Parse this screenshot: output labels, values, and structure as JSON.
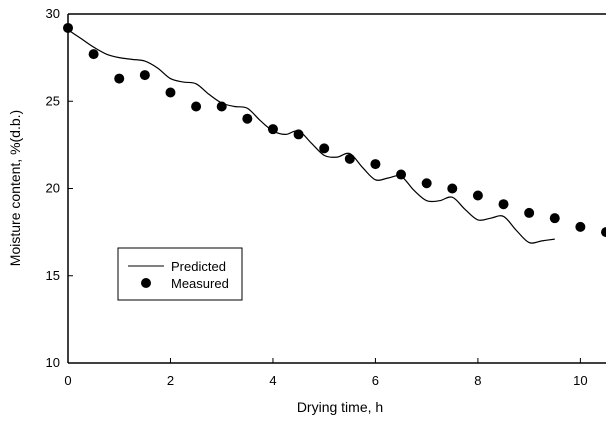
{
  "chart_data": {
    "type": "line",
    "xlabel": "Drying time, h",
    "ylabel": "Moisture content, %(d.b.)",
    "xlim": [
      0,
      10.5
    ],
    "ylim": [
      10,
      30
    ],
    "x_ticks": [
      0,
      2,
      4,
      6,
      8,
      10
    ],
    "y_ticks": [
      10,
      15,
      20,
      25,
      30
    ],
    "grid": false,
    "legend_placement": "center-left",
    "series": [
      {
        "name": "Predicted",
        "style": "line",
        "color": "#000000",
        "x": [
          0,
          0.25,
          0.5,
          0.75,
          1.0,
          1.25,
          1.5,
          1.75,
          2.0,
          2.25,
          2.5,
          2.75,
          3.0,
          3.25,
          3.5,
          3.75,
          4.0,
          4.25,
          4.5,
          4.75,
          5.0,
          5.25,
          5.5,
          5.75,
          6.0,
          6.25,
          6.5,
          6.75,
          7.0,
          7.25,
          7.5,
          7.75,
          8.0,
          8.25,
          8.5,
          8.75,
          9.0,
          9.25,
          9.5
        ],
        "y": [
          29.1,
          28.6,
          28.1,
          27.7,
          27.5,
          27.4,
          27.3,
          26.9,
          26.3,
          26.1,
          26.0,
          25.4,
          24.9,
          24.7,
          24.6,
          23.9,
          23.3,
          23.1,
          23.3,
          22.6,
          21.9,
          21.8,
          22.0,
          21.2,
          20.5,
          20.6,
          20.7,
          19.9,
          19.3,
          19.3,
          19.5,
          18.8,
          18.2,
          18.3,
          18.4,
          17.6,
          16.9,
          17.0,
          17.1
        ]
      },
      {
        "name": "Measured",
        "style": "marker",
        "color": "#000000",
        "x": [
          0,
          0.5,
          1.0,
          1.5,
          2.0,
          2.5,
          3.0,
          3.5,
          4.0,
          4.5,
          5.0,
          5.5,
          6.0,
          6.5,
          7.0,
          7.5,
          8.0,
          8.5,
          9.0,
          9.5,
          10.0,
          10.5
        ],
        "y": [
          29.2,
          27.7,
          26.3,
          26.5,
          25.5,
          24.7,
          24.7,
          24.0,
          23.4,
          23.1,
          22.3,
          21.7,
          21.4,
          20.8,
          20.3,
          20.0,
          19.6,
          19.1,
          18.6,
          18.3,
          17.8,
          17.5
        ]
      }
    ]
  }
}
